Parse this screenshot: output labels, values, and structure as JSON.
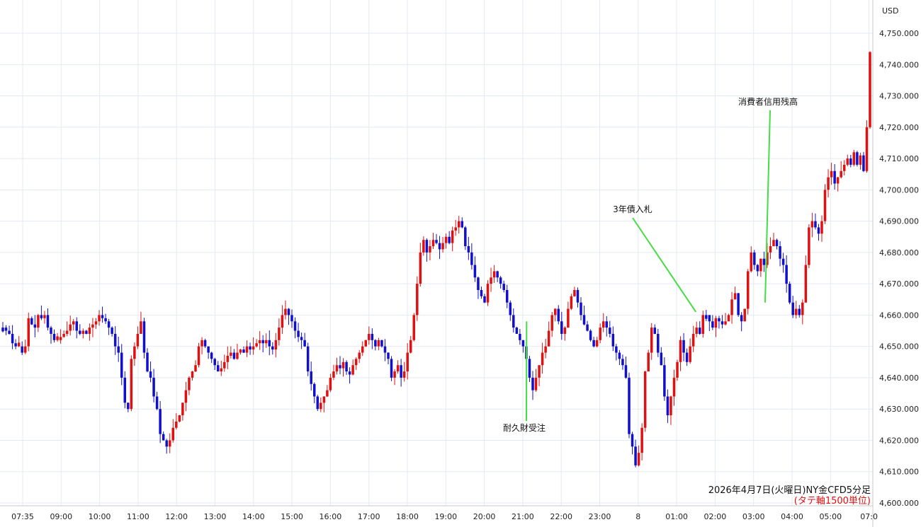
{
  "chart_data": {
    "type": "candlestick",
    "currency_label": "USD",
    "y_ticks": [
      "4,750.000",
      "4,740.000",
      "4,730.000",
      "4,720.000",
      "4,710.000",
      "4,700.000",
      "4,690.000",
      "4,680.000",
      "4,670.000",
      "4,660.000",
      "4,650.000",
      "4,640.000",
      "4,630.000",
      "4,620.000",
      "4,610.000",
      "4,600.000"
    ],
    "ylim": [
      4600,
      4750
    ],
    "x_ticks": [
      "07:35",
      "09:00",
      "10:00",
      "11:00",
      "12:00",
      "13:00",
      "14:00",
      "15:00",
      "16:00",
      "17:00",
      "18:00",
      "19:00",
      "20:00",
      "21:00",
      "22:00",
      "23:00",
      "8",
      "01:00",
      "02:00",
      "03:00",
      "04:00",
      "05:00",
      "07:0"
    ],
    "grid": true,
    "caption": {
      "line1": "2026年4月7日(火曜日)NY金CFD5分足",
      "line2": "(タテ軸1500単位)"
    },
    "annotations": [
      {
        "label": "耐久財受注",
        "time_index": 13.1,
        "price": 4658
      },
      {
        "label": "3年債入札",
        "time_index": 17.5,
        "price": 4661
      },
      {
        "label": "消費者信用残高",
        "time_index": 19.3,
        "price": 4664
      }
    ],
    "colors": {
      "up": "#e01010",
      "down": "#1010cc",
      "grid": "#e4eaf3",
      "annotation": "#44dd44"
    },
    "price_path": [
      4656,
      4655,
      4654,
      4651,
      4650,
      4650,
      4648,
      4650,
      4659,
      4657,
      4656,
      4660,
      4659,
      4660,
      4656,
      4654,
      4652,
      4652,
      4653,
      4654,
      4655,
      4657,
      4658,
      4655,
      4654,
      4655,
      4654,
      4656,
      4657,
      4658,
      4660,
      4659,
      4658,
      4656,
      4654,
      4650,
      4648,
      4640,
      4632,
      4630,
      4646,
      4650,
      4654,
      4658,
      4648,
      4642,
      4640,
      4634,
      4630,
      4622,
      4620,
      4618,
      4620,
      4624,
      4626,
      4628,
      4632,
      4636,
      4640,
      4642,
      4644,
      4650,
      4652,
      4650,
      4648,
      4646,
      4644,
      4642,
      4643,
      4645,
      4647,
      4648,
      4646,
      4648,
      4649,
      4648,
      4650,
      4649,
      4650,
      4651,
      4652,
      4651,
      4652,
      4650,
      4649,
      4652,
      4656,
      4660,
      4662,
      4660,
      4658,
      4655,
      4653,
      4652,
      4650,
      4642,
      4638,
      4634,
      4630,
      4632,
      4634,
      4636,
      4640,
      4642,
      4644,
      4643,
      4645,
      4642,
      4641,
      4644,
      4646,
      4648,
      4650,
      4652,
      4654,
      4652,
      4650,
      4652,
      4650,
      4648,
      4646,
      4640,
      4642,
      4644,
      4640,
      4642,
      4648,
      4652,
      4660,
      4670,
      4680,
      4684,
      4680,
      4682,
      4684,
      4683,
      4681,
      4683,
      4685,
      4683,
      4687,
      4688,
      4690,
      4688,
      4682,
      4680,
      4676,
      4672,
      4668,
      4666,
      4664,
      4670,
      4672,
      4674,
      4672,
      4670,
      4668,
      4664,
      4660,
      4656,
      4654,
      4652,
      4650,
      4646,
      4640,
      4636,
      4640,
      4644,
      4648,
      4650,
      4655,
      4660,
      4662,
      4658,
      4654,
      4656,
      4662,
      4666,
      4668,
      4664,
      4660,
      4657,
      4655,
      4652,
      4650,
      4652,
      4656,
      4658,
      4656,
      4654,
      4650,
      4648,
      4646,
      4644,
      4640,
      4622,
      4618,
      4612,
      4616,
      4624,
      4642,
      4648,
      4656,
      4654,
      4648,
      4644,
      4634,
      4628,
      4634,
      4640,
      4645,
      4652,
      4648,
      4645,
      4650,
      4654,
      4656,
      4654,
      4660,
      4660,
      4658,
      4656,
      4659,
      4658,
      4657,
      4658,
      4660,
      4665,
      4667,
      4660,
      4658,
      4662,
      4674,
      4680,
      4676,
      4674,
      4678,
      4676,
      4680,
      4682,
      4684,
      4682,
      4678,
      4676,
      4670,
      4664,
      4660,
      4662,
      4660,
      4664,
      4676,
      4688,
      4690,
      4688,
      4686,
      4690,
      4700,
      4704,
      4706,
      4702,
      4704,
      4706,
      4708,
      4710,
      4708,
      4712,
      4708,
      4711,
      4706,
      4720,
      4744
    ]
  }
}
